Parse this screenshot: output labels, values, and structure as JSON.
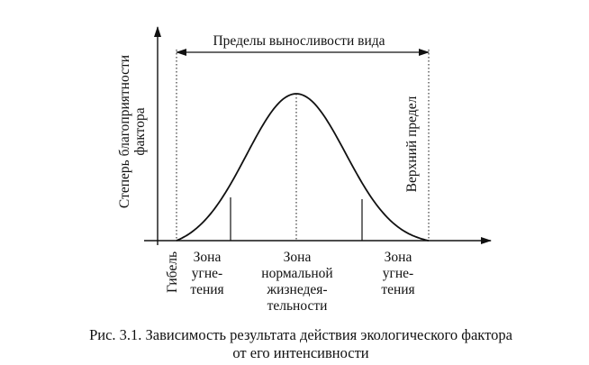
{
  "figure": {
    "range_label": "Пределы выносливости вида",
    "y_axis_label_line1": "Степерь благоприятности",
    "y_axis_label_line2": "фактора",
    "upper_limit_label": "Верхний предел",
    "death_label": "Гибель",
    "zone_left": [
      "Зона",
      "угне-",
      "тения"
    ],
    "zone_center": [
      "Зона",
      "нормальной",
      "жизнедея-",
      "тельности"
    ],
    "zone_right": [
      "Зона",
      "угне-",
      "тения"
    ]
  },
  "caption": {
    "line1": "Рис. 3.1. Зависимость результата действия экологического фактора",
    "line2": "от его интенсивности"
  },
  "colors": {
    "ink": "#111111",
    "background": "#ffffff"
  }
}
